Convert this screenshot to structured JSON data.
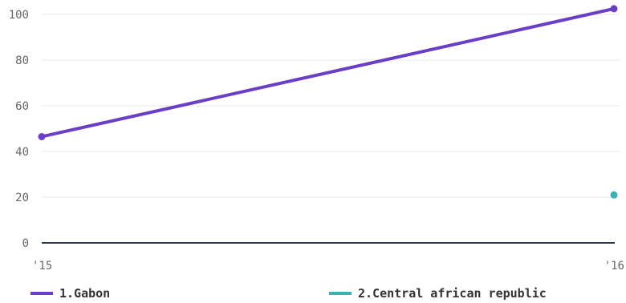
{
  "chart_data": {
    "type": "line",
    "x": [
      "'15",
      "'16"
    ],
    "series": [
      {
        "name": "1.Gabon",
        "values": [
          46.5,
          102.5
        ],
        "color": "#6a3fc6"
      },
      {
        "name": "2.Central african republic",
        "values": [
          null,
          21
        ],
        "color": "#3bb3b3"
      }
    ],
    "ylim": [
      0,
      100
    ],
    "y_ticks": [
      0,
      20,
      40,
      60,
      80,
      100
    ],
    "grid": true,
    "legend": "bottom"
  },
  "colors": {
    "axis": "#2f3b4a",
    "grid": "#e8e8e8",
    "tick_text": "#666666"
  }
}
